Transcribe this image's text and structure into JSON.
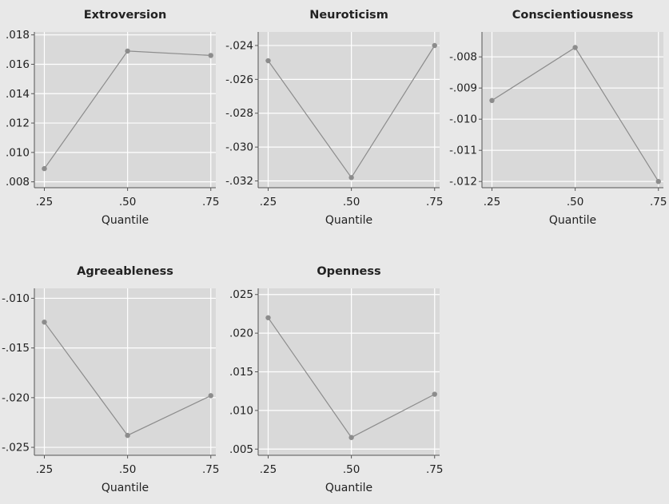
{
  "colors": {
    "background": "#e8e8e8",
    "plot_area": "#d9d9d9",
    "grid": "#ffffff",
    "line": "#8c8c8c",
    "marker": "#8c8c8c",
    "text": "#222222"
  },
  "chart_data": [
    {
      "type": "line",
      "title": "Extroversion",
      "xlabel": "Quantile",
      "ylabel": "",
      "x": [
        0.25,
        0.5,
        0.75
      ],
      "x_ticks": [
        ".25",
        ".50",
        ".75"
      ],
      "values": [
        0.0089,
        0.0169,
        0.0166
      ],
      "ylim": [
        0.0076,
        0.0182
      ],
      "y_ticks": [
        0.008,
        0.01,
        0.012,
        0.014,
        0.016,
        0.018
      ],
      "y_tick_labels": [
        ".008",
        ".010",
        ".012",
        ".014",
        ".016",
        ".018"
      ],
      "grid": true
    },
    {
      "type": "line",
      "title": "Neuroticism",
      "xlabel": "Quantile",
      "ylabel": "",
      "x": [
        0.25,
        0.5,
        0.75
      ],
      "x_ticks": [
        ".25",
        ".50",
        ".75"
      ],
      "values": [
        -0.0249,
        -0.0318,
        -0.024
      ],
      "ylim": [
        -0.0324,
        -0.0232
      ],
      "y_ticks": [
        -0.032,
        -0.03,
        -0.028,
        -0.026,
        -0.024
      ],
      "y_tick_labels": [
        "-.032",
        "-.030",
        "-.028",
        "-.026",
        "-.024"
      ],
      "grid": true
    },
    {
      "type": "line",
      "title": "Conscientiousness",
      "xlabel": "Quantile",
      "ylabel": "",
      "x": [
        0.25,
        0.5,
        0.75
      ],
      "x_ticks": [
        ".25",
        ".50",
        ".75"
      ],
      "values": [
        -0.0094,
        -0.0077,
        -0.012
      ],
      "ylim": [
        -0.0122,
        -0.0072
      ],
      "y_ticks": [
        -0.012,
        -0.011,
        -0.01,
        -0.009,
        -0.008
      ],
      "y_tick_labels": [
        "-.012",
        "-.011",
        "-.010",
        "-.009",
        "-.008"
      ],
      "grid": true
    },
    {
      "type": "line",
      "title": "Agreeableness",
      "xlabel": "Quantile",
      "ylabel": "",
      "x": [
        0.25,
        0.5,
        0.75
      ],
      "x_ticks": [
        ".25",
        ".50",
        ".75"
      ],
      "values": [
        -0.0124,
        -0.0238,
        -0.0198
      ],
      "ylim": [
        -0.0258,
        -0.009
      ],
      "y_ticks": [
        -0.025,
        -0.02,
        -0.015,
        -0.01
      ],
      "y_tick_labels": [
        "-.025",
        "-.020",
        "-.015",
        "-.010"
      ],
      "grid": true
    },
    {
      "type": "line",
      "title": "Openness",
      "xlabel": "Quantile",
      "ylabel": "",
      "x": [
        0.25,
        0.5,
        0.75
      ],
      "x_ticks": [
        ".25",
        ".50",
        ".75"
      ],
      "values": [
        0.022,
        0.0065,
        0.0121
      ],
      "ylim": [
        0.0042,
        0.0258
      ],
      "y_ticks": [
        0.005,
        0.01,
        0.015,
        0.02,
        0.025
      ],
      "y_tick_labels": [
        ".005",
        ".010",
        ".015",
        ".020",
        ".025"
      ],
      "grid": true
    }
  ]
}
